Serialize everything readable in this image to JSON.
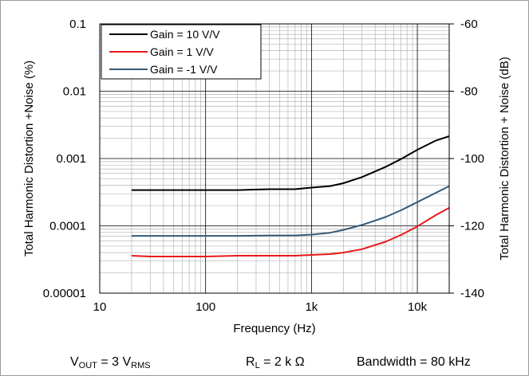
{
  "chart_data": {
    "type": "line",
    "xlabel": "Frequency (Hz)",
    "ylabel": "Total Harmonic Distortion +Noise (%)",
    "y2label": "Total Harmonic Distortion + Noise (dB)",
    "xscale": "log",
    "yscale": "log",
    "xlim": [
      10,
      20000
    ],
    "ylim": [
      1e-05,
      0.1
    ],
    "y2lim": [
      -140,
      -60
    ],
    "grid": true,
    "legend_position": "top-left",
    "x_ticks": [
      "10",
      "100",
      "1k",
      "10k"
    ],
    "y_ticks": [
      "0.00001",
      "0.0001",
      "0.001",
      "0.01",
      "0.1"
    ],
    "y2_ticks": [
      "-140",
      "-120",
      "-100",
      "-80",
      "-60"
    ],
    "series": [
      {
        "name": "Gain = 10 V/V",
        "color": "#000000",
        "x": [
          20,
          30,
          50,
          100,
          200,
          400,
          700,
          1000,
          1500,
          2000,
          3000,
          5000,
          7000,
          10000,
          15000,
          20000
        ],
        "y": [
          0.00034,
          0.00034,
          0.00034,
          0.00034,
          0.00034,
          0.00035,
          0.00035,
          0.00037,
          0.00039,
          0.00043,
          0.00053,
          0.00075,
          0.00098,
          0.00135,
          0.00185,
          0.00215
        ]
      },
      {
        "name": "Gain = 1 V/V",
        "color": "#e8181a",
        "x": [
          20,
          30,
          50,
          100,
          200,
          400,
          700,
          1000,
          1500,
          2000,
          3000,
          5000,
          7000,
          10000,
          15000,
          20000
        ],
        "y": [
          3.6e-05,
          3.5e-05,
          3.5e-05,
          3.5e-05,
          3.6e-05,
          3.6e-05,
          3.6e-05,
          3.7e-05,
          3.8e-05,
          4e-05,
          4.5e-05,
          5.8e-05,
          7.3e-05,
          9.8e-05,
          0.000145,
          0.000185
        ]
      },
      {
        "name": "Gain = -1 V/V",
        "color": "#335a78",
        "x": [
          20,
          30,
          50,
          100,
          200,
          400,
          700,
          1000,
          1500,
          2000,
          3000,
          5000,
          7000,
          10000,
          15000,
          20000
        ],
        "y": [
          7.1e-05,
          7.1e-05,
          7.1e-05,
          7.1e-05,
          7.1e-05,
          7.2e-05,
          7.2e-05,
          7.4e-05,
          7.9e-05,
          8.7e-05,
          0.000103,
          0.000135,
          0.00017,
          0.000225,
          0.00031,
          0.00039
        ]
      }
    ]
  },
  "conditions": {
    "vout_prefix": "V",
    "vout_sub": "OUT",
    "vout_value": " = 3 V",
    "vout_unit_sub": "RMS",
    "rl_prefix": "R",
    "rl_sub": "L",
    "rl_value": " = 2 k",
    "rl_unit": "Ω",
    "bandwidth": "Bandwidth = 80 kHz"
  }
}
